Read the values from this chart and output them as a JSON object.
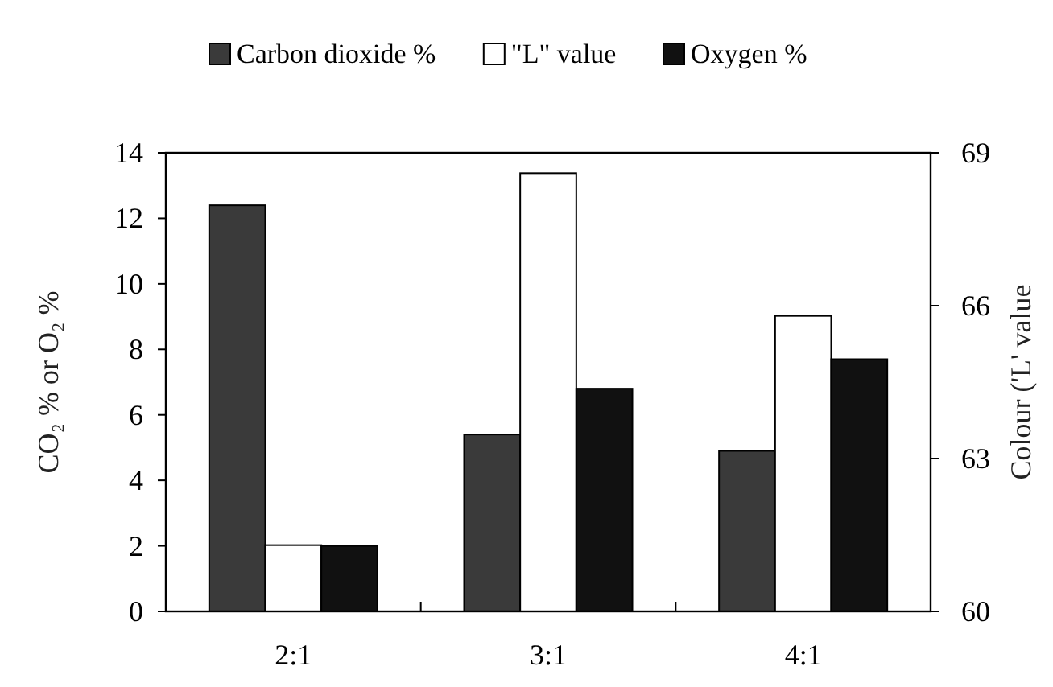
{
  "chart_data": {
    "type": "bar",
    "categories": [
      "2:1",
      "3:1",
      "4:1"
    ],
    "ylabel": "CO₂ % or O₂ %",
    "y2label": "Colour ('L' value",
    "series": [
      {
        "name": "Carbon dioxide %",
        "color": "#3a3a3a",
        "values": [
          12.4,
          5.4,
          4.9
        ]
      },
      {
        "name": "\"L\" value",
        "color": "#ffffff",
        "values": [
          61.3,
          68.6,
          65.8
        ],
        "axis": "y2"
      },
      {
        "name": "Oxygen %",
        "color": "#111111",
        "values": [
          2.0,
          6.8,
          7.7
        ]
      }
    ],
    "ylim": [
      0,
      14
    ],
    "yticks": [
      0,
      2,
      4,
      6,
      8,
      10,
      12,
      14
    ],
    "y2lim": [
      60,
      69
    ],
    "y2ticks": [
      60,
      63,
      66,
      69
    ],
    "legend": "top",
    "grid": false
  }
}
